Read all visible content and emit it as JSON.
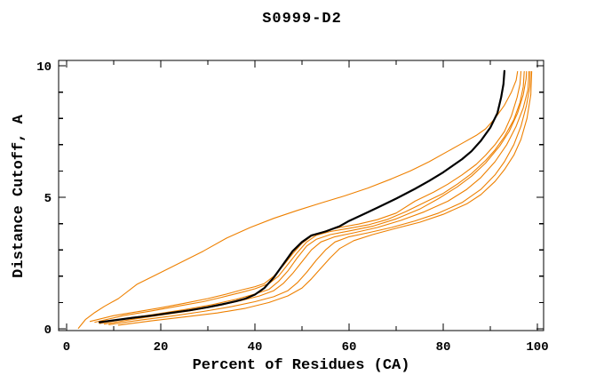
{
  "chart_data": {
    "type": "line",
    "title": "S0999-D2",
    "xlabel": "Percent of Residues (CA)",
    "ylabel": "Distance Cutoff, A",
    "axes": {
      "x": {
        "min": 0,
        "max": 100,
        "major_ticks": [
          0,
          20,
          40,
          60,
          80,
          100
        ],
        "minor_ticks": [
          10,
          30,
          50,
          70,
          90
        ]
      },
      "y": {
        "min": 0,
        "max": 10,
        "major_ticks": [
          0,
          5,
          10
        ],
        "minor_ticks": [
          1,
          2,
          3,
          4,
          6,
          7,
          8,
          9
        ]
      }
    },
    "grid": false,
    "legend": "none",
    "frame": "full-box-inward-ticks",
    "colors": {
      "reference": "#000000",
      "models": "#ee8000"
    },
    "series": [
      {
        "name": "black-reference-curve",
        "color": "#000000",
        "width": 2.2,
        "points": [
          [
            7,
            0.25
          ],
          [
            10,
            0.32
          ],
          [
            14,
            0.42
          ],
          [
            18,
            0.5
          ],
          [
            22,
            0.6
          ],
          [
            26,
            0.7
          ],
          [
            30,
            0.82
          ],
          [
            33,
            0.93
          ],
          [
            36,
            1.05
          ],
          [
            38,
            1.15
          ],
          [
            40,
            1.3
          ],
          [
            42,
            1.55
          ],
          [
            44,
            1.95
          ],
          [
            46,
            2.45
          ],
          [
            48,
            2.95
          ],
          [
            50,
            3.3
          ],
          [
            52,
            3.55
          ],
          [
            55,
            3.7
          ],
          [
            58,
            3.9
          ],
          [
            60,
            4.1
          ],
          [
            63,
            4.35
          ],
          [
            66,
            4.6
          ],
          [
            70,
            4.95
          ],
          [
            74,
            5.32
          ],
          [
            77,
            5.62
          ],
          [
            80,
            5.95
          ],
          [
            82,
            6.2
          ],
          [
            84,
            6.45
          ],
          [
            86,
            6.75
          ],
          [
            88,
            7.15
          ],
          [
            90,
            7.65
          ],
          [
            91.5,
            8.2
          ],
          [
            92.3,
            8.8
          ],
          [
            92.8,
            9.3
          ],
          [
            93,
            9.8
          ]
        ]
      },
      {
        "name": "orange-model-1-outlier",
        "color": "#ee8000",
        "width": 1.1,
        "points": [
          [
            2.5,
            0.02
          ],
          [
            4,
            0.35
          ],
          [
            6,
            0.62
          ],
          [
            8,
            0.85
          ],
          [
            11,
            1.15
          ],
          [
            15,
            1.7
          ],
          [
            19,
            2.05
          ],
          [
            24,
            2.5
          ],
          [
            29,
            2.95
          ],
          [
            34,
            3.45
          ],
          [
            39,
            3.85
          ],
          [
            44,
            4.2
          ],
          [
            49,
            4.5
          ],
          [
            54,
            4.78
          ],
          [
            59,
            5.05
          ],
          [
            64,
            5.35
          ],
          [
            69,
            5.7
          ],
          [
            73,
            6.0
          ],
          [
            77,
            6.35
          ],
          [
            81,
            6.75
          ],
          [
            84,
            7.05
          ],
          [
            87,
            7.35
          ],
          [
            89,
            7.6
          ],
          [
            91,
            8.0
          ],
          [
            93,
            8.5
          ],
          [
            94.5,
            9.0
          ],
          [
            95.5,
            9.45
          ],
          [
            95.8,
            9.78
          ]
        ]
      },
      {
        "name": "orange-model-2",
        "color": "#ee8000",
        "width": 1.1,
        "points": [
          [
            5,
            0.28
          ],
          [
            10,
            0.5
          ],
          [
            15,
            0.65
          ],
          [
            20,
            0.8
          ],
          [
            25,
            0.97
          ],
          [
            30,
            1.15
          ],
          [
            34,
            1.32
          ],
          [
            37,
            1.47
          ],
          [
            40,
            1.6
          ],
          [
            42,
            1.72
          ],
          [
            44,
            2.0
          ],
          [
            46,
            2.4
          ],
          [
            48,
            2.85
          ],
          [
            50,
            3.25
          ],
          [
            52,
            3.52
          ],
          [
            55,
            3.72
          ],
          [
            58,
            3.85
          ],
          [
            62,
            3.98
          ],
          [
            66,
            4.15
          ],
          [
            70,
            4.4
          ],
          [
            74,
            4.85
          ],
          [
            78,
            5.2
          ],
          [
            81,
            5.5
          ],
          [
            84,
            5.85
          ],
          [
            87,
            6.25
          ],
          [
            89,
            6.6
          ],
          [
            91,
            7.0
          ],
          [
            93,
            7.5
          ],
          [
            94.5,
            8.1
          ],
          [
            95.7,
            8.8
          ],
          [
            96.3,
            9.3
          ],
          [
            96.5,
            9.78
          ]
        ]
      },
      {
        "name": "orange-model-3",
        "color": "#ee8000",
        "width": 1.1,
        "points": [
          [
            6,
            0.25
          ],
          [
            12,
            0.5
          ],
          [
            18,
            0.68
          ],
          [
            24,
            0.87
          ],
          [
            29,
            1.03
          ],
          [
            33,
            1.2
          ],
          [
            37,
            1.38
          ],
          [
            40,
            1.52
          ],
          [
            43,
            1.72
          ],
          [
            45,
            2.0
          ],
          [
            47,
            2.45
          ],
          [
            49,
            2.9
          ],
          [
            51,
            3.3
          ],
          [
            53,
            3.55
          ],
          [
            56,
            3.7
          ],
          [
            60,
            3.82
          ],
          [
            64,
            3.95
          ],
          [
            68,
            4.15
          ],
          [
            72,
            4.45
          ],
          [
            76,
            4.8
          ],
          [
            80,
            5.15
          ],
          [
            83,
            5.5
          ],
          [
            86,
            5.9
          ],
          [
            89,
            6.4
          ],
          [
            91,
            6.8
          ],
          [
            93,
            7.3
          ],
          [
            95,
            7.95
          ],
          [
            96.3,
            8.6
          ],
          [
            97,
            9.2
          ],
          [
            97.2,
            9.78
          ]
        ]
      },
      {
        "name": "orange-model-4",
        "color": "#ee8000",
        "width": 1.1,
        "points": [
          [
            7,
            0.2
          ],
          [
            13,
            0.4
          ],
          [
            19,
            0.56
          ],
          [
            25,
            0.73
          ],
          [
            31,
            0.92
          ],
          [
            36,
            1.12
          ],
          [
            40,
            1.32
          ],
          [
            43,
            1.5
          ],
          [
            45,
            1.8
          ],
          [
            47,
            2.2
          ],
          [
            49,
            2.7
          ],
          [
            51,
            3.15
          ],
          [
            53,
            3.4
          ],
          [
            56,
            3.58
          ],
          [
            60,
            3.72
          ],
          [
            65,
            3.9
          ],
          [
            70,
            4.18
          ],
          [
            75,
            4.55
          ],
          [
            79,
            4.95
          ],
          [
            83,
            5.4
          ],
          [
            86,
            5.8
          ],
          [
            89,
            6.3
          ],
          [
            92,
            6.95
          ],
          [
            94,
            7.5
          ],
          [
            95.8,
            8.2
          ],
          [
            97,
            8.9
          ],
          [
            97.6,
            9.5
          ],
          [
            97.7,
            9.78
          ]
        ]
      },
      {
        "name": "orange-model-5",
        "color": "#ee8000",
        "width": 1.1,
        "points": [
          [
            8,
            0.18
          ],
          [
            14,
            0.36
          ],
          [
            20,
            0.52
          ],
          [
            26,
            0.68
          ],
          [
            32,
            0.87
          ],
          [
            37,
            1.07
          ],
          [
            41,
            1.25
          ],
          [
            44,
            1.45
          ],
          [
            46,
            1.72
          ],
          [
            48,
            2.1
          ],
          [
            50,
            2.55
          ],
          [
            52,
            3.0
          ],
          [
            54,
            3.3
          ],
          [
            57,
            3.5
          ],
          [
            61,
            3.65
          ],
          [
            66,
            3.85
          ],
          [
            71,
            4.12
          ],
          [
            76,
            4.45
          ],
          [
            81,
            4.85
          ],
          [
            85,
            5.3
          ],
          [
            88,
            5.75
          ],
          [
            91,
            6.35
          ],
          [
            93.5,
            7.0
          ],
          [
            95.5,
            7.7
          ],
          [
            97,
            8.4
          ],
          [
            98,
            9.1
          ],
          [
            98.2,
            9.78
          ]
        ]
      },
      {
        "name": "orange-model-6",
        "color": "#ee8000",
        "width": 1.1,
        "points": [
          [
            9,
            0.16
          ],
          [
            16,
            0.34
          ],
          [
            23,
            0.5
          ],
          [
            29,
            0.66
          ],
          [
            35,
            0.84
          ],
          [
            40,
            1.03
          ],
          [
            44,
            1.22
          ],
          [
            47,
            1.45
          ],
          [
            49,
            1.75
          ],
          [
            51,
            2.15
          ],
          [
            53,
            2.6
          ],
          [
            55,
            3.0
          ],
          [
            57,
            3.3
          ],
          [
            60,
            3.5
          ],
          [
            64,
            3.65
          ],
          [
            69,
            3.85
          ],
          [
            74,
            4.1
          ],
          [
            79,
            4.4
          ],
          [
            84,
            4.8
          ],
          [
            88,
            5.3
          ],
          [
            91,
            5.85
          ],
          [
            93,
            6.35
          ],
          [
            95,
            7.0
          ],
          [
            96.5,
            7.7
          ],
          [
            97.7,
            8.5
          ],
          [
            98.4,
            9.2
          ],
          [
            98.5,
            9.78
          ]
        ]
      },
      {
        "name": "orange-model-7",
        "color": "#ee8000",
        "width": 1.1,
        "points": [
          [
            11,
            0.14
          ],
          [
            18,
            0.3
          ],
          [
            25,
            0.45
          ],
          [
            32,
            0.6
          ],
          [
            38,
            0.78
          ],
          [
            43,
            1.0
          ],
          [
            47,
            1.25
          ],
          [
            50,
            1.55
          ],
          [
            52,
            1.9
          ],
          [
            54,
            2.3
          ],
          [
            56,
            2.7
          ],
          [
            58,
            3.05
          ],
          [
            61,
            3.35
          ],
          [
            65,
            3.58
          ],
          [
            70,
            3.82
          ],
          [
            75,
            4.05
          ],
          [
            80,
            4.35
          ],
          [
            85,
            4.75
          ],
          [
            88,
            5.1
          ],
          [
            91,
            5.6
          ],
          [
            93,
            6.05
          ],
          [
            95,
            6.6
          ],
          [
            96.5,
            7.2
          ],
          [
            97.8,
            8.0
          ],
          [
            98.6,
            8.9
          ],
          [
            98.8,
            9.78
          ]
        ]
      }
    ]
  }
}
